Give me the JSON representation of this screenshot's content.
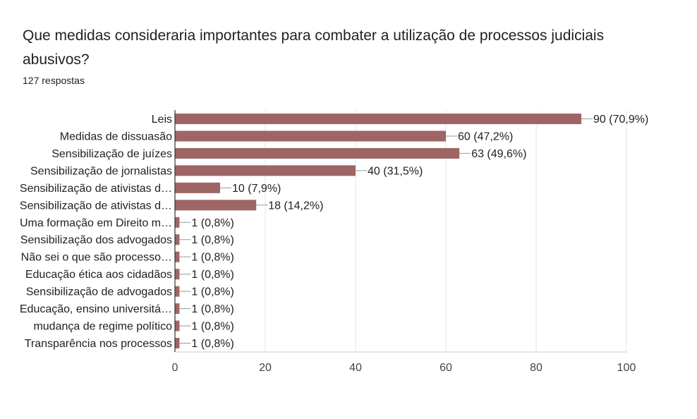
{
  "question": {
    "title": "Que medidas consideraria importantes para combater a utilização de processos judiciais abusivos?",
    "responses": "127 respostas"
  },
  "colors": {
    "bar": "#9e6565",
    "grid": "#e6e6e6",
    "axis": "#333333",
    "text": "#202124",
    "tick_text": "#444444"
  },
  "chart_data": {
    "type": "bar",
    "orientation": "horizontal",
    "categories": [
      "Leis",
      "Medidas de dissuasão",
      "Sensibilização de juízes",
      "Sensibilização de jornalistas",
      "Sensibilização de ativistas d…",
      "Sensibilização de ativistas d…",
      "Uma formação em Direito m…",
      "Sensibilização dos advogados",
      "Não sei o que são processo…",
      "Educação ética aos cidadãos",
      "Sensibilização de advogados",
      "Educação, ensino universitá…",
      "mudança de regime político",
      "Transparência nos processos"
    ],
    "values": [
      90,
      60,
      63,
      40,
      10,
      18,
      1,
      1,
      1,
      1,
      1,
      1,
      1,
      1
    ],
    "data_labels": [
      "90 (70,9%)",
      "60 (47,2%)",
      "63 (49,6%)",
      "40 (31,5%)",
      "10 (7,9%)",
      "18 (14,2%)",
      "1 (0,8%)",
      "1 (0,8%)",
      "1 (0,8%)",
      "1 (0,8%)",
      "1 (0,8%)",
      "1 (0,8%)",
      "1 (0,8%)",
      "1 (0,8%)"
    ],
    "xlim": [
      0,
      100
    ],
    "xticks": [
      0,
      20,
      40,
      60,
      80,
      100
    ],
    "grid": true,
    "legend": "none"
  }
}
